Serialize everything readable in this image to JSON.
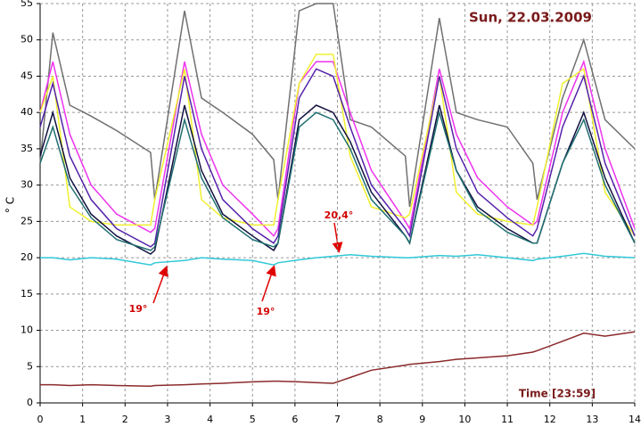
{
  "chart_data": {
    "type": "line",
    "title": "Sun, 22.03.2009",
    "xlabel": "Time [23:59]",
    "ylabel": "° C",
    "x": [
      0,
      0.3,
      0.7,
      1.2,
      1.8,
      2.6,
      2.7,
      3.4,
      3.8,
      4.3,
      5.0,
      5.5,
      5.6,
      6.1,
      6.5,
      6.9,
      7.3,
      7.8,
      8.6,
      8.7,
      9.4,
      9.8,
      10.3,
      11.0,
      11.6,
      11.7,
      12.3,
      12.8,
      13.3,
      14.0
    ],
    "series": [
      {
        "color": "#707070",
        "values": [
          33,
          51,
          41,
          39.5,
          37.5,
          34.5,
          28,
          54,
          42,
          40,
          37,
          33.5,
          28,
          54,
          55,
          55,
          39,
          38,
          34,
          27,
          53,
          40,
          39,
          38,
          33,
          28,
          42,
          50,
          39,
          35
        ]
      },
      {
        "color": "#ee33ee",
        "values": [
          40,
          47,
          37,
          30,
          26,
          23.5,
          24,
          47,
          37,
          30,
          26,
          23,
          24,
          44,
          47,
          47,
          40,
          32,
          25,
          24,
          46,
          37,
          31,
          27,
          24.5,
          25,
          40,
          47,
          35,
          24
        ]
      },
      {
        "color": "#f0f030",
        "values": [
          40,
          45,
          27,
          25,
          24.5,
          24.5,
          28,
          46,
          28,
          25.5,
          24.5,
          24.5,
          28,
          44,
          48,
          48,
          34,
          27,
          25.5,
          26,
          45,
          29,
          26,
          25,
          24.5,
          27,
          44,
          46,
          29,
          23
        ]
      },
      {
        "color": "#5522aa",
        "values": [
          38,
          44,
          34,
          28,
          24,
          21.5,
          22,
          45,
          35,
          28,
          24,
          22,
          23,
          42,
          46,
          45,
          38,
          30,
          24,
          23,
          45,
          35,
          29,
          25.5,
          23,
          24,
          38,
          45,
          33,
          23
        ]
      },
      {
        "color": "#101040",
        "values": [
          34,
          40,
          31,
          26,
          23,
          20.5,
          21,
          41,
          32,
          26,
          23,
          21,
          22,
          39,
          41,
          40,
          36,
          29,
          23,
          22,
          41,
          32,
          27,
          24,
          22,
          22,
          33,
          40,
          31,
          22
        ]
      },
      {
        "color": "#207070",
        "values": [
          33,
          38,
          30,
          25.5,
          22.5,
          21,
          21.5,
          39,
          31,
          25.5,
          22.5,
          21.5,
          22,
          38,
          40,
          39,
          35,
          28,
          23,
          22,
          40,
          32,
          26.5,
          23.5,
          22,
          22,
          33,
          39,
          30,
          22
        ]
      },
      {
        "color": "#30c8d8",
        "values": [
          20,
          20,
          19.7,
          20,
          19.8,
          19,
          19.3,
          19.6,
          20,
          19.8,
          19.6,
          19,
          19.3,
          19.7,
          20,
          20.2,
          20.4,
          20.2,
          20,
          20,
          20.3,
          20.2,
          20.4,
          20,
          19.6,
          19.8,
          20.2,
          20.6,
          20.2,
          20
        ]
      },
      {
        "color": "#8b2a2a",
        "values": [
          2.5,
          2.5,
          2.4,
          2.5,
          2.4,
          2.3,
          2.4,
          2.5,
          2.6,
          2.7,
          2.9,
          3,
          3,
          2.9,
          2.8,
          2.7,
          3.5,
          4.5,
          5.2,
          5.3,
          5.7,
          6,
          6.2,
          6.5,
          7,
          7.2,
          8.5,
          9.6,
          9.2,
          9.8
        ]
      }
    ],
    "annotations": [
      "19°",
      "19°",
      "20,4°"
    ],
    "xlim": [
      0,
      14
    ],
    "xticks": [
      0,
      1,
      2,
      3,
      4,
      5,
      6,
      7,
      8,
      9,
      10,
      11,
      12,
      13,
      14
    ],
    "ylim": [
      0,
      55
    ],
    "yticks": [
      0,
      5,
      10,
      15,
      20,
      25,
      30,
      35,
      40,
      45,
      50,
      55
    ],
    "grid": true
  }
}
